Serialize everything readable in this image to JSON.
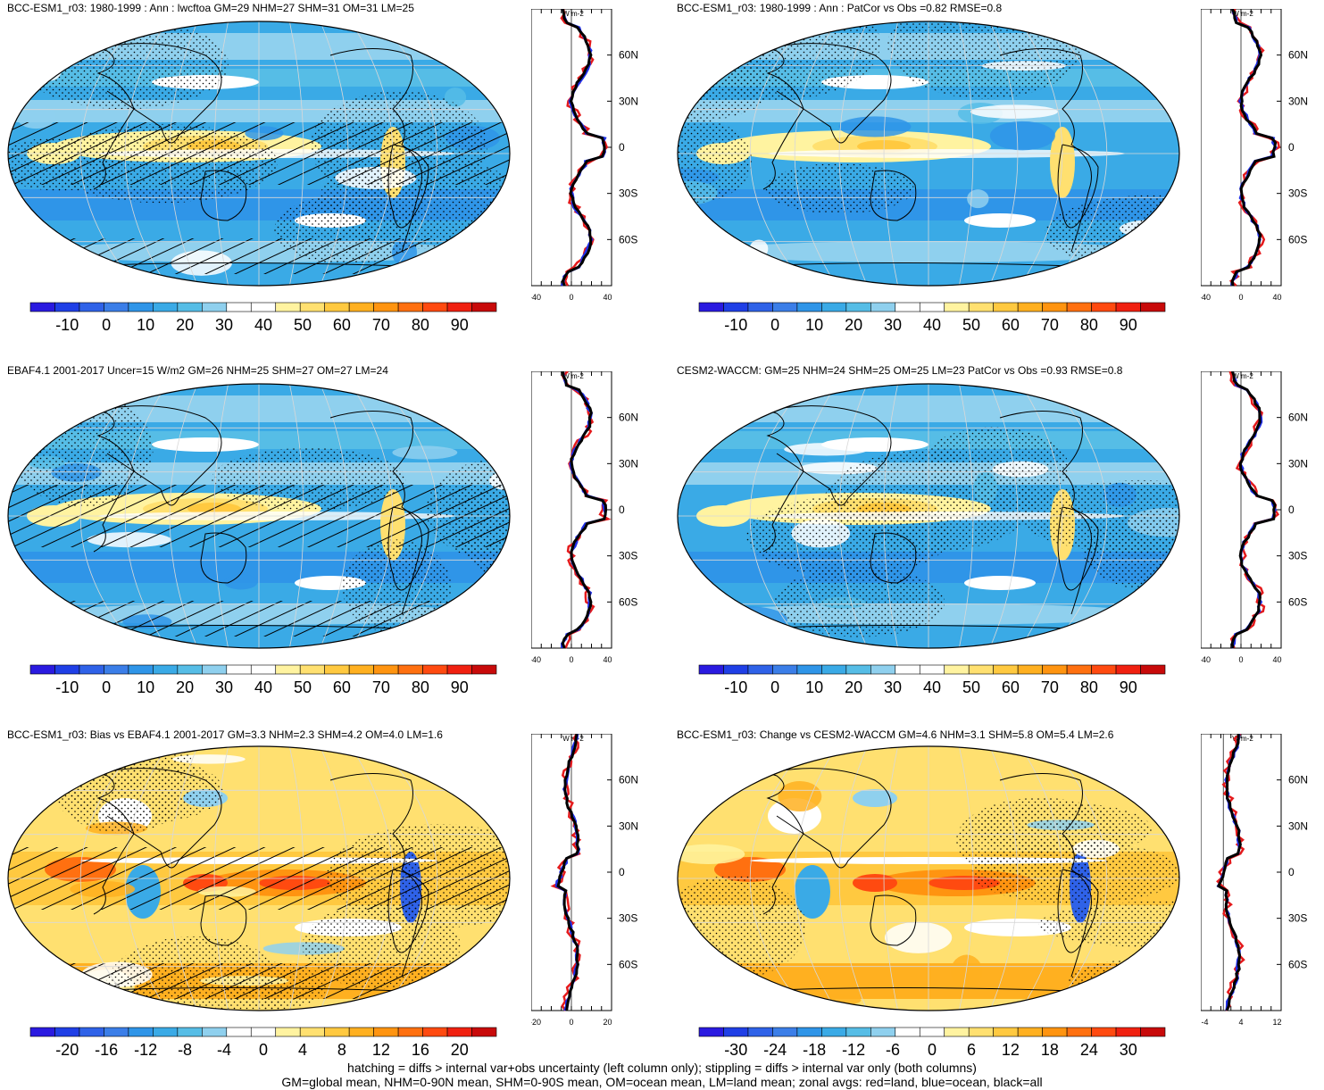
{
  "panels": [
    {
      "title": "BCC-ESM1_r03: 1980-1999 : Ann : lwcftoa GM=29 NHM=27 SHM=31 OM=31 LM=25",
      "colorbar": [
        "-10",
        "0",
        "10",
        "20",
        "30",
        "40",
        "50",
        "60",
        "70",
        "80",
        "90"
      ],
      "zonal_ticks": [
        "-40",
        "0",
        "40"
      ],
      "unit": "W m-2",
      "type": "field",
      "hatch": true
    },
    {
      "title": "BCC-ESM1_r03: 1980-1999 : Ann : PatCor vs Obs =0.82 RMSE=0.8",
      "colorbar": [
        "-10",
        "0",
        "10",
        "20",
        "30",
        "40",
        "50",
        "60",
        "70",
        "80",
        "90"
      ],
      "zonal_ticks": [
        "-40",
        "0",
        "40"
      ],
      "unit": "W m-2",
      "type": "field",
      "hatch": false
    },
    {
      "title": "EBAF4.1 2001-2017 Uncer=15 W/m2 GM=26 NHM=25 SHM=27 OM=27 LM=24",
      "colorbar": [
        "-10",
        "0",
        "10",
        "20",
        "30",
        "40",
        "50",
        "60",
        "70",
        "80",
        "90"
      ],
      "zonal_ticks": [
        "-40",
        "0",
        "40"
      ],
      "unit": "W m-2",
      "type": "field",
      "hatch": true
    },
    {
      "title": "CESM2-WACCM: GM=25 NHM=24 SHM=25 OM=25 LM=23 PatCor vs Obs =0.93 RMSE=0.8",
      "colorbar": [
        "-10",
        "0",
        "10",
        "20",
        "30",
        "40",
        "50",
        "60",
        "70",
        "80",
        "90"
      ],
      "zonal_ticks": [
        "-40",
        "0",
        "40"
      ],
      "unit": "W m-2",
      "type": "field",
      "hatch": false
    },
    {
      "title": "BCC-ESM1_r03: Bias vs EBAF4.1 2001-2017 GM=3.3 NHM=2.3 SHM=4.2 OM=4.0 LM=1.6",
      "colorbar": [
        "-20",
        "-16",
        "-12",
        "-8",
        "-4",
        "0",
        "4",
        "8",
        "12",
        "16",
        "20"
      ],
      "zonal_ticks": [
        "-20",
        "0",
        "20"
      ],
      "unit": "W m-2",
      "type": "diff",
      "hatch": true
    },
    {
      "title": "BCC-ESM1_r03: Change vs CESM2-WACCM GM=4.6 NHM=3.1 SHM=5.8 OM=5.4 LM=2.6",
      "colorbar": [
        "-30",
        "-24",
        "-18",
        "-12",
        "-6",
        "0",
        "6",
        "12",
        "18",
        "24",
        "30"
      ],
      "zonal_ticks": [
        "-4",
        "4",
        "12"
      ],
      "unit": "W m-2",
      "type": "diff",
      "hatch": false
    }
  ],
  "lat_labels": [
    "60N",
    "30N",
    "0",
    "30S",
    "60S"
  ],
  "colors_field": [
    "#2a1ae0",
    "#1f3fe6",
    "#2f62e8",
    "#3b7ee8",
    "#2f95e8",
    "#3aaae6",
    "#56bde6",
    "#8fd0ee",
    "#ffffff",
    "#ffffff",
    "#fff3a0",
    "#ffe070",
    "#ffc940",
    "#ffb020",
    "#ff9410",
    "#ff7010",
    "#ff4a10",
    "#f02010",
    "#c80a0a"
  ],
  "colors_diff": [
    "#2a1ae0",
    "#1f3fe6",
    "#2f62e8",
    "#3b7ee8",
    "#2f95e8",
    "#3aaae6",
    "#56bde6",
    "#8fd0ee",
    "#ffffff",
    "#ffffff",
    "#fff3a0",
    "#ffe070",
    "#ffc940",
    "#ffb020",
    "#ff9410",
    "#ff7010",
    "#ff4a10",
    "#f02010",
    "#c80a0a"
  ],
  "footer": {
    "line1": "hatching = diffs > internal var+obs uncertainty (left column only); stippling = diffs > internal var only (both columns)",
    "line2": "GM=global mean, NHM=0-90N mean, SHM=0-90S mean, OM=ocean mean, LM=land mean; zonal avgs: red=land, blue=ocean, black=all"
  }
}
